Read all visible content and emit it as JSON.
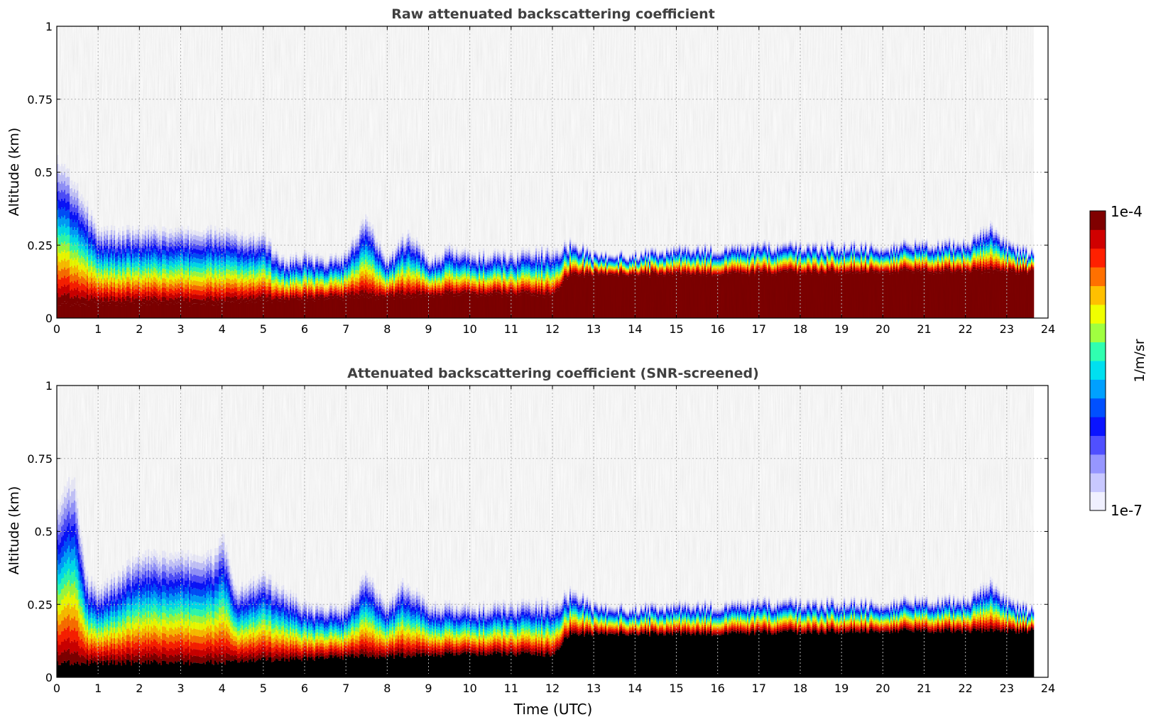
{
  "chart_data": [
    {
      "type": "heatmap",
      "title": "Raw attenuated backscattering coefficient",
      "xlabel": "",
      "ylabel": "Altitude (km)",
      "xlim": [
        0,
        24
      ],
      "ylim": [
        0,
        1
      ],
      "xticks": [
        "0",
        "1",
        "2",
        "3",
        "4",
        "5",
        "6",
        "7",
        "8",
        "9",
        "10",
        "11",
        "12",
        "13",
        "14",
        "15",
        "16",
        "17",
        "18",
        "19",
        "20",
        "21",
        "22",
        "23",
        "24"
      ],
      "yticks": [
        "0",
        "0.25",
        "0.5",
        "0.75",
        "1"
      ],
      "grid": true,
      "screened": false,
      "layer_top_km": [
        [
          0,
          0.55
        ],
        [
          0.5,
          0.45
        ],
        [
          1,
          0.3
        ],
        [
          2,
          0.3
        ],
        [
          3,
          0.3
        ],
        [
          4,
          0.3
        ],
        [
          4.5,
          0.28
        ],
        [
          5,
          0.28
        ],
        [
          5.5,
          0.2
        ],
        [
          6,
          0.22
        ],
        [
          6.5,
          0.2
        ],
        [
          7,
          0.22
        ],
        [
          7.5,
          0.35
        ],
        [
          8,
          0.2
        ],
        [
          8.5,
          0.3
        ],
        [
          9,
          0.2
        ],
        [
          9.5,
          0.24
        ],
        [
          10,
          0.22
        ],
        [
          11,
          0.22
        ],
        [
          12,
          0.24
        ],
        [
          12.5,
          0.26
        ],
        [
          13,
          0.22
        ],
        [
          14,
          0.22
        ],
        [
          15,
          0.24
        ],
        [
          16,
          0.24
        ],
        [
          17,
          0.25
        ],
        [
          18,
          0.25
        ],
        [
          19,
          0.25
        ],
        [
          20,
          0.25
        ],
        [
          21,
          0.26
        ],
        [
          22,
          0.26
        ],
        [
          22.6,
          0.32
        ],
        [
          23,
          0.26
        ],
        [
          23.65,
          0.22
        ]
      ],
      "high_sat_top_km": [
        [
          0,
          0.05
        ],
        [
          4,
          0.05
        ],
        [
          5,
          0.06
        ],
        [
          7,
          0.07
        ],
        [
          10,
          0.08
        ],
        [
          12,
          0.08
        ],
        [
          12.4,
          0.15
        ],
        [
          16,
          0.15
        ],
        [
          20,
          0.16
        ],
        [
          23.65,
          0.16
        ]
      ]
    },
    {
      "type": "heatmap",
      "title": "Attenuated backscattering coefficient (SNR-screened)",
      "xlabel": "Time (UTC)",
      "ylabel": "Altitude (km)",
      "xlim": [
        0,
        24
      ],
      "ylim": [
        0,
        1
      ],
      "xticks": [
        "0",
        "1",
        "2",
        "3",
        "4",
        "5",
        "6",
        "7",
        "8",
        "9",
        "10",
        "11",
        "12",
        "13",
        "14",
        "15",
        "16",
        "17",
        "18",
        "19",
        "20",
        "21",
        "22",
        "23",
        "24"
      ],
      "yticks": [
        "0",
        "0.25",
        "0.5",
        "0.75",
        "1"
      ],
      "grid": true,
      "screened": true,
      "layer_top_km": [
        [
          0,
          0.6
        ],
        [
          0.4,
          0.7
        ],
        [
          0.7,
          0.35
        ],
        [
          1,
          0.3
        ],
        [
          2,
          0.42
        ],
        [
          3,
          0.42
        ],
        [
          3.8,
          0.42
        ],
        [
          4,
          0.5
        ],
        [
          4.3,
          0.3
        ],
        [
          5,
          0.35
        ],
        [
          5.5,
          0.3
        ],
        [
          6,
          0.25
        ],
        [
          6.5,
          0.24
        ],
        [
          7,
          0.24
        ],
        [
          7.5,
          0.36
        ],
        [
          8,
          0.25
        ],
        [
          8.4,
          0.33
        ],
        [
          9,
          0.25
        ],
        [
          10,
          0.24
        ],
        [
          11,
          0.25
        ],
        [
          12,
          0.26
        ],
        [
          12.5,
          0.3
        ],
        [
          13,
          0.25
        ],
        [
          14,
          0.24
        ],
        [
          15,
          0.25
        ],
        [
          16,
          0.25
        ],
        [
          17,
          0.26
        ],
        [
          18,
          0.26
        ],
        [
          19,
          0.26
        ],
        [
          20,
          0.26
        ],
        [
          21,
          0.27
        ],
        [
          22,
          0.27
        ],
        [
          22.6,
          0.33
        ],
        [
          23,
          0.27
        ],
        [
          23.65,
          0.23
        ]
      ],
      "high_sat_top_km": [
        [
          0,
          0.05
        ],
        [
          4,
          0.05
        ],
        [
          5,
          0.06
        ],
        [
          7,
          0.07
        ],
        [
          10,
          0.08
        ],
        [
          12,
          0.08
        ],
        [
          12.4,
          0.15
        ],
        [
          16,
          0.15
        ],
        [
          20,
          0.16
        ],
        [
          23.65,
          0.16
        ]
      ]
    }
  ],
  "colorbar": {
    "label": "1/m/sr",
    "max_label": "1e-4",
    "min_label": "1e-7",
    "colors": [
      "#f0f0ff",
      "#c8c8ff",
      "#9696ff",
      "#5050ff",
      "#0a14ff",
      "#0050ff",
      "#00a0ff",
      "#00e0f0",
      "#30ffb0",
      "#a0ff40",
      "#f0ff00",
      "#ffc000",
      "#ff7000",
      "#ff2000",
      "#d00000",
      "#800000"
    ]
  },
  "data_end_hour": 23.65
}
